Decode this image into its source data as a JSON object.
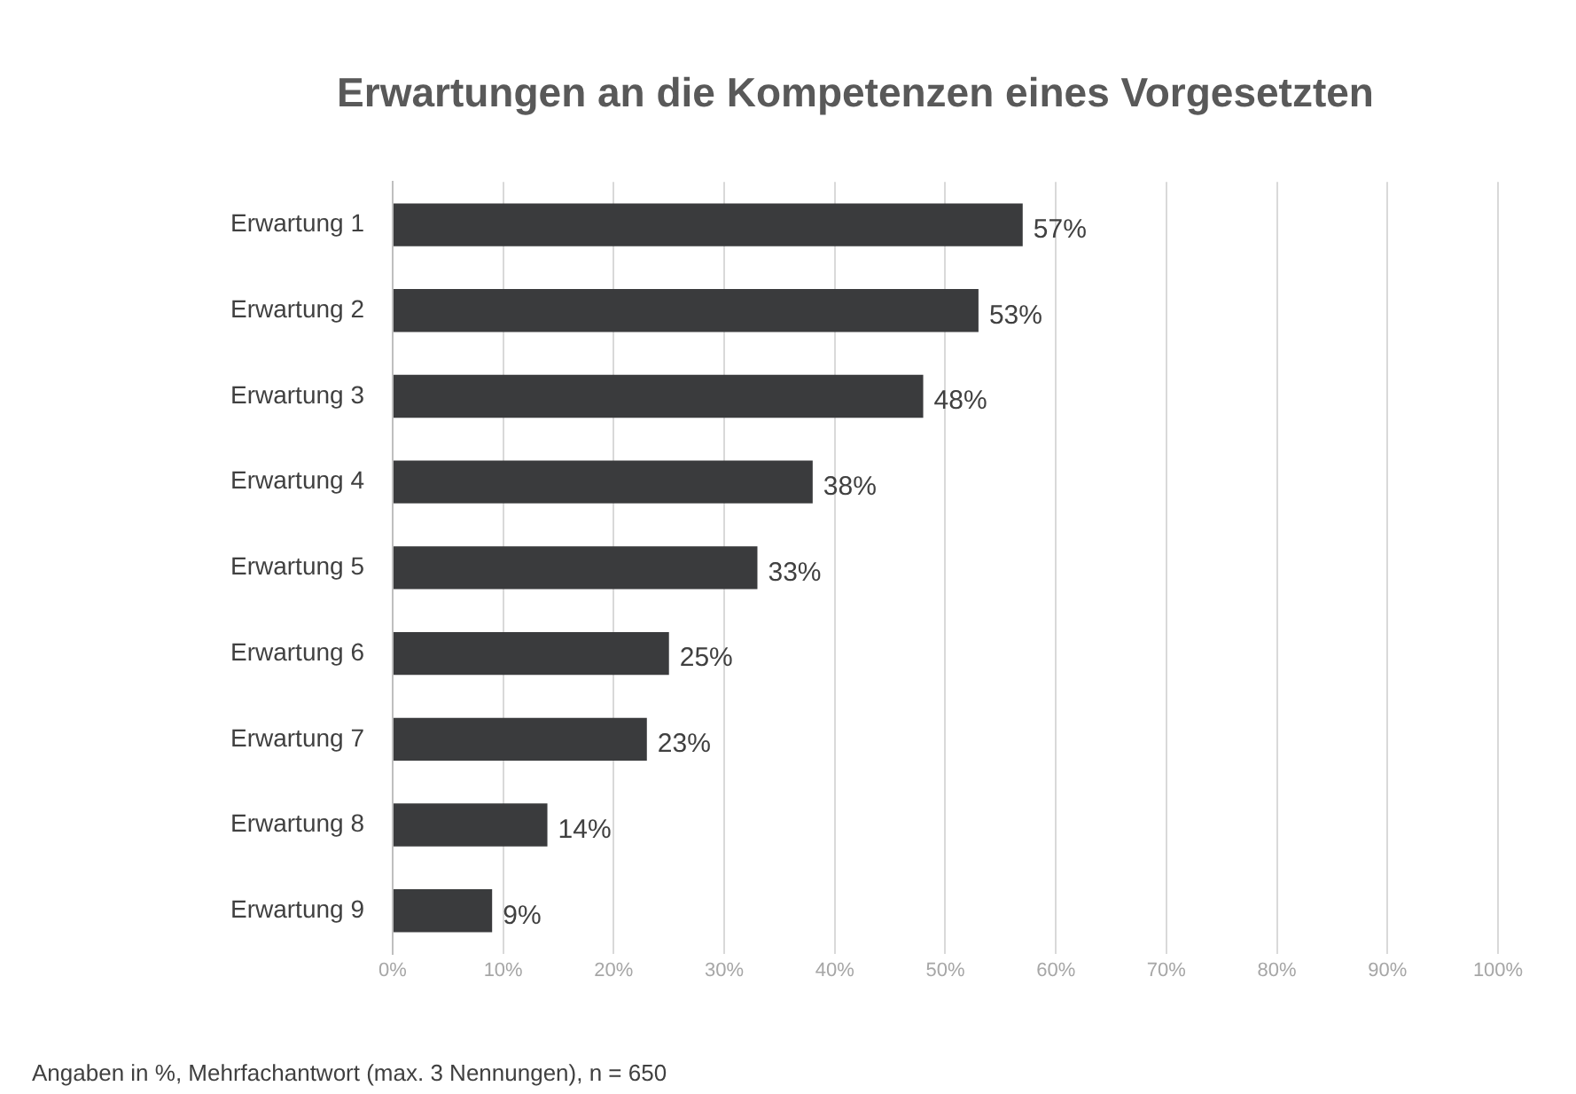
{
  "chart_data": {
    "type": "bar",
    "orientation": "horizontal",
    "title": "Erwartungen an die Kompetenzen eines Vorgesetzten",
    "categories": [
      "Erwartung 1",
      "Erwartung 2",
      "Erwartung 3",
      "Erwartung 4",
      "Erwartung 5",
      "Erwartung 6",
      "Erwartung 7",
      "Erwartung 8",
      "Erwartung 9"
    ],
    "values": [
      57,
      53,
      48,
      38,
      33,
      25,
      23,
      14,
      9
    ],
    "value_labels": [
      "57%",
      "53%",
      "48%",
      "38%",
      "33%",
      "25%",
      "23%",
      "14%",
      "9%"
    ],
    "color": "#3a3b3d",
    "xlim": [
      0,
      100
    ],
    "xticks": [
      {
        "value": 0,
        "label": "0%"
      },
      {
        "value": 10,
        "label": "10%"
      },
      {
        "value": 20,
        "label": "20%"
      },
      {
        "value": 30,
        "label": "30%"
      },
      {
        "value": 40,
        "label": "40%"
      },
      {
        "value": 50,
        "label": "50%"
      },
      {
        "value": 60,
        "label": "60%"
      },
      {
        "value": 70,
        "label": "70%"
      },
      {
        "value": 80,
        "label": "80%"
      },
      {
        "value": 90,
        "label": "90%"
      },
      {
        "value": 100,
        "label": "100%"
      }
    ],
    "grid": "x",
    "legend": false,
    "annotations": [
      "Angaben in %, Mehrfachantwort (max. 3 Nennungen), n = 650"
    ]
  }
}
